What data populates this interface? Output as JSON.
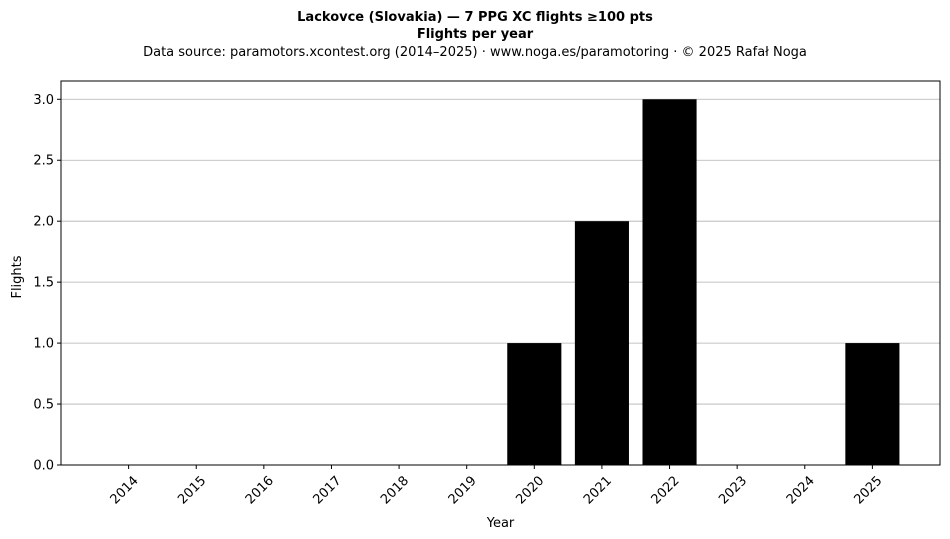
{
  "chart_data": {
    "type": "bar",
    "title": "Lackovce (Slovakia)  —  7 PPG XC flights ≥100 pts",
    "subtitle": "Flights per year",
    "source_note": "Data source: paramotors.xcontest.org (2014–2025)  ·  www.noga.es/paramotoring  ·  © 2025 Rafał Noga",
    "xlabel": "Year",
    "ylabel": "Flights",
    "categories": [
      "2014",
      "2015",
      "2016",
      "2017",
      "2018",
      "2019",
      "2020",
      "2021",
      "2022",
      "2023",
      "2024",
      "2025"
    ],
    "values": [
      0,
      0,
      0,
      0,
      0,
      0,
      1,
      2,
      3,
      0,
      0,
      1
    ],
    "ylim": [
      0,
      3.15
    ],
    "yticks": [
      0,
      0.5,
      1,
      1.5,
      2,
      2.5,
      3
    ],
    "ytick_labels": [
      "0.0",
      "0.5",
      "1.0",
      "1.5",
      "2.0",
      "2.5",
      "3.0"
    ],
    "grid": "y",
    "bar_color": "#000000",
    "grid_color": "#b0b0b0",
    "x_tick_rotation": 45
  }
}
